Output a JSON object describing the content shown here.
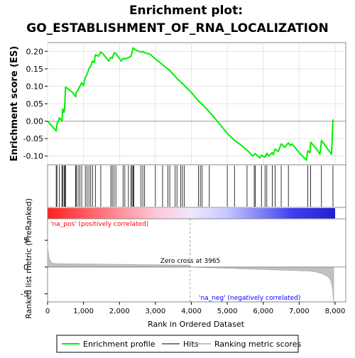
{
  "title_line1": "Enrichment plot:",
  "title_line2": "GO_ESTABLISHMENT_OF_RNA_LOCALIZATION",
  "es_axis_label": "Enrichment score (ES)",
  "rank_axis_label": "Ranked list metric (PreRanked)",
  "x_axis_label": "Rank in Ordered Dataset",
  "pos_label": "'na_pos' (positively correlated)",
  "neg_label": "'na_neg' (negatively correlated)",
  "zero_cross_label": "Zero cross at 3965",
  "legend": {
    "enrichment": "Enrichment profile",
    "hits": "Hits",
    "ranking": "Ranking metric scores"
  },
  "colors": {
    "enrichment_line": "#00ee00",
    "hit_line": "#000000",
    "ranking_fill": "#c0c0c0",
    "pos_color": "#ff0000",
    "neg_color": "#0000ff",
    "zero_line": "#a0a0a0"
  },
  "chart_data": {
    "type": "line",
    "xlim": [
      0,
      8000
    ],
    "x_ticks": [
      0,
      1000,
      2000,
      3000,
      4000,
      5000,
      6000,
      7000,
      8000
    ],
    "x_tick_labels": [
      "0",
      "1,000",
      "2,000",
      "3,000",
      "4,000",
      "5,000",
      "6,000",
      "7,000",
      "8,000"
    ],
    "es_ylim": [
      -0.125,
      0.225
    ],
    "es_ticks": [
      -0.1,
      -0.05,
      0.0,
      0.05,
      0.1,
      0.15,
      0.2
    ],
    "es_tick_labels": [
      "-0.10",
      "-0.05",
      "0.00",
      "0.05",
      "0.10",
      "0.15",
      "0.20"
    ],
    "rank_ylim": [
      -6.5,
      9
    ],
    "rank_ticks": [
      -5,
      0,
      5
    ],
    "rank_tick_labels": [
      "-5",
      "0",
      "5"
    ],
    "zero_cross": 3965,
    "n_genes": 7960,
    "enrichment_profile": [
      [
        0,
        0.0
      ],
      [
        240,
        -0.028
      ],
      [
        260,
        -0.008
      ],
      [
        300,
        0.0
      ],
      [
        330,
        0.01
      ],
      [
        400,
        0.0
      ],
      [
        420,
        0.035
      ],
      [
        460,
        0.025
      ],
      [
        480,
        0.045
      ],
      [
        500,
        0.098
      ],
      [
        700,
        0.082
      ],
      [
        780,
        0.07
      ],
      [
        800,
        0.082
      ],
      [
        850,
        0.09
      ],
      [
        900,
        0.1
      ],
      [
        950,
        0.11
      ],
      [
        1000,
        0.102
      ],
      [
        1050,
        0.125
      ],
      [
        1100,
        0.135
      ],
      [
        1150,
        0.15
      ],
      [
        1200,
        0.158
      ],
      [
        1250,
        0.172
      ],
      [
        1300,
        0.168
      ],
      [
        1330,
        0.19
      ],
      [
        1420,
        0.186
      ],
      [
        1480,
        0.198
      ],
      [
        1550,
        0.192
      ],
      [
        1700,
        0.172
      ],
      [
        1760,
        0.183
      ],
      [
        1800,
        0.18
      ],
      [
        1850,
        0.196
      ],
      [
        1900,
        0.194
      ],
      [
        2050,
        0.172
      ],
      [
        2100,
        0.18
      ],
      [
        2150,
        0.178
      ],
      [
        2250,
        0.182
      ],
      [
        2320,
        0.186
      ],
      [
        2380,
        0.21
      ],
      [
        2450,
        0.204
      ],
      [
        2600,
        0.198
      ],
      [
        2650,
        0.2
      ],
      [
        2700,
        0.196
      ],
      [
        2850,
        0.192
      ],
      [
        3000,
        0.178
      ],
      [
        3200,
        0.162
      ],
      [
        3400,
        0.145
      ],
      [
        3600,
        0.122
      ],
      [
        3800,
        0.103
      ],
      [
        4000,
        0.082
      ],
      [
        4200,
        0.058
      ],
      [
        4400,
        0.038
      ],
      [
        4600,
        0.015
      ],
      [
        4800,
        -0.01
      ],
      [
        5000,
        -0.035
      ],
      [
        5200,
        -0.055
      ],
      [
        5400,
        -0.07
      ],
      [
        5600,
        -0.088
      ],
      [
        5700,
        -0.1
      ],
      [
        5780,
        -0.093
      ],
      [
        5900,
        -0.105
      ],
      [
        5950,
        -0.098
      ],
      [
        6050,
        -0.103
      ],
      [
        6100,
        -0.092
      ],
      [
        6150,
        -0.1
      ],
      [
        6250,
        -0.09
      ],
      [
        6280,
        -0.096
      ],
      [
        6330,
        -0.08
      ],
      [
        6420,
        -0.087
      ],
      [
        6500,
        -0.065
      ],
      [
        6600,
        -0.075
      ],
      [
        6700,
        -0.062
      ],
      [
        6750,
        -0.07
      ],
      [
        6800,
        -0.065
      ],
      [
        7000,
        -0.09
      ],
      [
        7200,
        -0.112
      ],
      [
        7240,
        -0.085
      ],
      [
        7300,
        -0.09
      ],
      [
        7320,
        -0.06
      ],
      [
        7500,
        -0.082
      ],
      [
        7580,
        -0.095
      ],
      [
        7620,
        -0.055
      ],
      [
        7900,
        -0.095
      ],
      [
        7940,
        0.005
      ]
    ],
    "hit_positions": [
      240,
      260,
      330,
      400,
      420,
      460,
      480,
      500,
      780,
      800,
      850,
      900,
      950,
      1050,
      1100,
      1150,
      1200,
      1250,
      1330,
      1480,
      1760,
      1800,
      1850,
      1900,
      2100,
      2150,
      2250,
      2320,
      2350,
      2380,
      2400,
      2600,
      2650,
      2700,
      3000,
      3200,
      3350,
      3400,
      3550,
      3600,
      3700,
      3750,
      3800,
      4200,
      4250,
      4300,
      4500,
      5000,
      5200,
      5550,
      5750,
      5780,
      5950,
      6050,
      6100,
      6250,
      6330,
      6500,
      6700,
      7240,
      7320,
      7620,
      7940
    ]
  }
}
